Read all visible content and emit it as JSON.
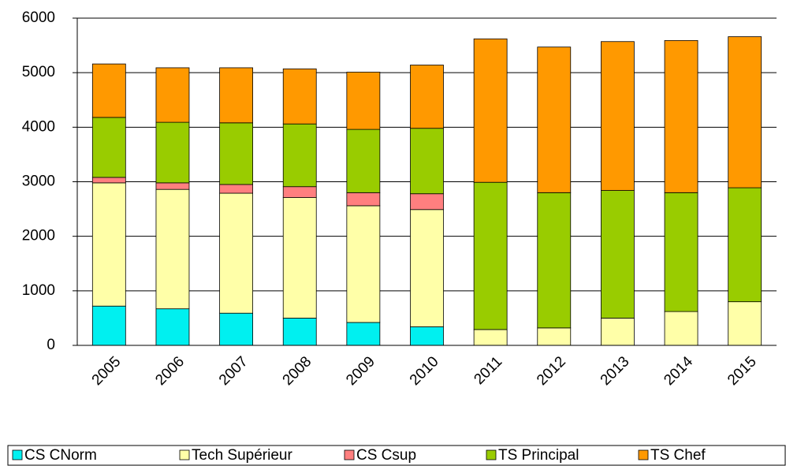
{
  "chart_data": {
    "type": "stacked_bar",
    "categories": [
      "2005",
      "2006",
      "2007",
      "2008",
      "2009",
      "2010",
      "2011",
      "2012",
      "2013",
      "2014",
      "2015"
    ],
    "series": [
      {
        "name": "CS CNorm",
        "color": "#00f0f0",
        "values": [
          720,
          670,
          590,
          500,
          420,
          340,
          0,
          0,
          0,
          0,
          0
        ]
      },
      {
        "name": "Tech Supérieur",
        "color": "#ffffa8",
        "values": [
          2260,
          2190,
          2200,
          2210,
          2140,
          2150,
          290,
          320,
          500,
          620,
          800
        ]
      },
      {
        "name": "CS Csup",
        "color": "#ff7f7f",
        "values": [
          100,
          120,
          160,
          200,
          240,
          290,
          0,
          0,
          0,
          0,
          0
        ]
      },
      {
        "name": "TS Principal",
        "color": "#99cc00",
        "values": [
          1100,
          1110,
          1130,
          1150,
          1160,
          1200,
          2700,
          2480,
          2340,
          2180,
          2090
        ]
      },
      {
        "name": "TS Chef",
        "color": "#ff9900",
        "values": [
          980,
          1000,
          1010,
          1010,
          1050,
          1160,
          2630,
          2670,
          2730,
          2790,
          2770
        ]
      }
    ],
    "ylim": [
      0,
      6000
    ],
    "yticks": [
      0,
      1000,
      2000,
      3000,
      4000,
      5000,
      6000
    ],
    "grid": true,
    "legend": "bottom"
  }
}
